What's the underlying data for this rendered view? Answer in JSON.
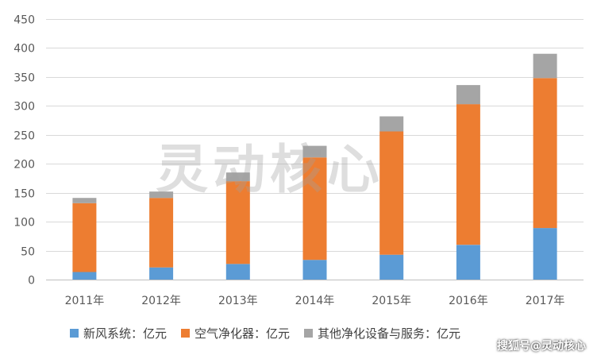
{
  "chart_data": {
    "type": "bar",
    "stacked": true,
    "categories": [
      "2011年",
      "2012年",
      "2013年",
      "2014年",
      "2015年",
      "2016年",
      "2017年"
    ],
    "series": [
      {
        "name": "新风系统：亿元",
        "color": "#5B9BD5",
        "values": [
          13,
          21,
          27,
          34,
          43,
          60,
          89
        ]
      },
      {
        "name": "空气净化器：亿元",
        "color": "#ED7D31",
        "values": [
          119,
          120,
          143,
          177,
          213,
          243,
          259
        ]
      },
      {
        "name": "其他净化设备与服务：亿元",
        "color": "#A5A5A5",
        "values": [
          9,
          11,
          15,
          20,
          26,
          33,
          42
        ]
      }
    ],
    "ylim": [
      0,
      450
    ],
    "yticks": [
      0,
      50,
      100,
      150,
      200,
      250,
      300,
      350,
      400,
      450
    ],
    "grid": true,
    "legend_position": "bottom"
  },
  "watermark": "灵动核心",
  "source_label": "搜狐号@灵动核心"
}
